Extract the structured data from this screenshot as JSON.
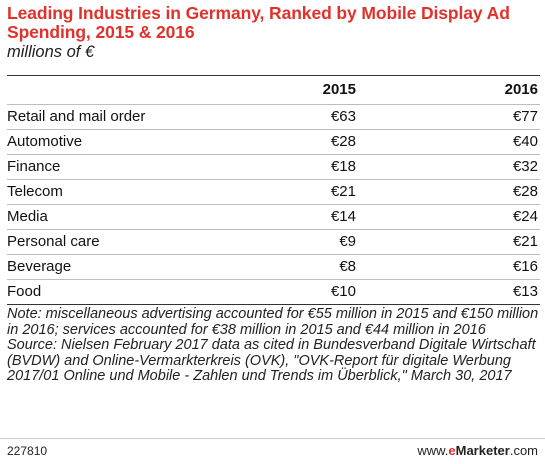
{
  "chart_data": {
    "type": "table",
    "title": "Leading Industries in Germany, Ranked by Mobile Display Ad Spending, 2015 & 2016",
    "subtitle": "millions of €",
    "columns": [
      "2015",
      "2016"
    ],
    "rows": [
      {
        "category": "Retail and mail order",
        "values": [
          "€63",
          "€77"
        ]
      },
      {
        "category": "Automotive",
        "values": [
          "€28",
          "€40"
        ]
      },
      {
        "category": "Finance",
        "values": [
          "€18",
          "€32"
        ]
      },
      {
        "category": "Telecom",
        "values": [
          "€21",
          "€28"
        ]
      },
      {
        "category": "Media",
        "values": [
          "€14",
          "€24"
        ]
      },
      {
        "category": "Personal care",
        "values": [
          "€9",
          "€21"
        ]
      },
      {
        "category": "Beverage",
        "values": [
          "€8",
          "€16"
        ]
      },
      {
        "category": "Food",
        "values": [
          "€10",
          "€13"
        ]
      }
    ]
  },
  "notes": {
    "note": "Note: miscellaneous advertising accounted for €55 million in 2015 and €150 million in 2016; services accounted for €38 million in 2015 and €44 million in 2016",
    "source": "Source: Nielsen February 2017 data as cited in Bundesverband Digitale Wirtschaft (BVDW) and Online-Vermarkterkreis (OVK), \"OVK-Report für digitale Werbung 2017/01 Online und Mobile - Zahlen und Trends im Überblick,\" March 30, 2017"
  },
  "footer": {
    "id": "227810",
    "brand_prefix": "www.",
    "brand_e": "e",
    "brand_main": "Marketer",
    "brand_suffix": ".com"
  },
  "colors": {
    "title": "#e0322c",
    "accent": "#e0322c"
  }
}
